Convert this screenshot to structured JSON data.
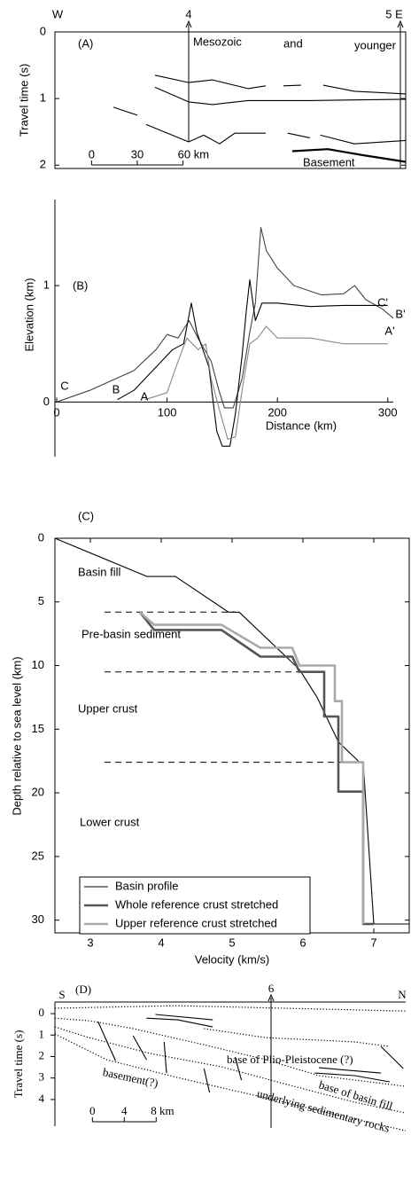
{
  "chart_data": [
    {
      "type": "line",
      "panel": "(A)",
      "ylabel": "Travel time (s)",
      "xlim": [
        -24,
        206
      ],
      "ylim": [
        2.05,
        0
      ],
      "yticks": [
        0,
        1,
        2
      ],
      "annotations": [
        "W",
        "4",
        "5 E",
        "Mesozoic",
        "and",
        "younger",
        "Basement"
      ],
      "scale_bar": [
        0,
        30,
        {
          "value": 60,
          "label": "60 km"
        }
      ],
      "series": [
        {
          "color": "#000",
          "style": "solid",
          "x": [
            41.6,
            63.7,
            79.4,
            102.6,
            114.2,
            null,
            125.8,
            137.4,
            null,
            151.9,
            172.3,
            189.7,
            206
          ],
          "values": [
            0.65,
            0.76,
            0.72,
            0.85,
            0.81,
            null,
            0.81,
            0.8,
            null,
            0.8,
            0.89,
            0.91,
            0.93
          ]
        },
        {
          "color": "#000",
          "style": "solid",
          "x": [
            41.6,
            63.7,
            79.4,
            102.6,
            143.2,
            206
          ],
          "values": [
            0.83,
            1.05,
            1.09,
            1.03,
            1.03,
            1.01
          ]
        },
        {
          "color": "#000",
          "style": "solid",
          "x": [
            14.3,
            30,
            null,
            35.8,
            63.7,
            73.6,
            84,
            93.9,
            114.2,
            null,
            128.7,
            143.2,
            null,
            150,
            172.3,
            206
          ],
          "values": [
            1.13,
            1.25,
            null,
            1.39,
            1.65,
            1.55,
            1.68,
            1.52,
            1.52,
            null,
            1.52,
            1.59,
            null,
            1.55,
            1.68,
            1.63
          ]
        },
        {
          "color": "#000",
          "style": "thick",
          "x": [
            131.6,
            155,
            178,
            206
          ],
          "values": [
            1.79,
            1.76,
            1.85,
            1.95
          ]
        }
      ]
    },
    {
      "type": "line",
      "panel": "(B)",
      "ylabel": "Elevation (km)",
      "xlabel": "Distance (km)",
      "xlim": [
        0,
        305
      ],
      "ylim": [
        -0.47,
        1.74
      ],
      "xticks": [
        0,
        100,
        200,
        300
      ],
      "yticks": [
        0,
        1
      ],
      "annotations": [
        "C",
        "B",
        "A",
        "C'",
        "B'",
        "A'"
      ],
      "series": [
        {
          "color": "#444",
          "style": "solid",
          "x": [
            0,
            30,
            70,
            90,
            100,
            110,
            120,
            128,
            140,
            147,
            152,
            160,
            168,
            175,
            180,
            185,
            190,
            200,
            215,
            240,
            260,
            270,
            280,
            295,
            305
          ],
          "values": [
            0,
            0.1,
            0.27,
            0.45,
            0.58,
            0.55,
            0.7,
            0.55,
            0.35,
            0.1,
            -0.05,
            -0.05,
            0.2,
            0.6,
            0.85,
            1.5,
            1.3,
            1.15,
            1.0,
            0.92,
            0.93,
            1.0,
            0.88,
            0.8,
            0.72
          ]
        },
        {
          "color": "#000",
          "style": "solid",
          "x": [
            55,
            70,
            90,
            105,
            115,
            122,
            127,
            138,
            145,
            150,
            157,
            162,
            168,
            172,
            175,
            180,
            186,
            200,
            230,
            260,
            300
          ],
          "values": [
            0.02,
            0.1,
            0.3,
            0.45,
            0.5,
            0.85,
            0.6,
            0.3,
            -0.25,
            -0.38,
            -0.38,
            -0.1,
            0.4,
            0.8,
            1.05,
            0.7,
            0.85,
            0.85,
            0.82,
            0.83,
            0.83
          ]
        },
        {
          "color": "#888",
          "style": "solid",
          "x": [
            80,
            90,
            100,
            110,
            118,
            128,
            135,
            140,
            147,
            155,
            162,
            168,
            175,
            182,
            190,
            200,
            230,
            260,
            300
          ],
          "values": [
            0.02,
            0.05,
            0.08,
            0.35,
            0.55,
            0.45,
            0.5,
            0.2,
            -0.05,
            -0.32,
            -0.3,
            0.1,
            0.5,
            0.55,
            0.65,
            0.55,
            0.55,
            0.5,
            0.5
          ]
        }
      ]
    },
    {
      "type": "line",
      "panel": "(C)",
      "ylabel": "Depth relative to sea level (km)",
      "xlabel": "Velocity (km/s)",
      "xlim": [
        2.5,
        7.5
      ],
      "ylim": [
        31,
        0
      ],
      "xticks": [
        3,
        4,
        5,
        6,
        7
      ],
      "yticks": [
        0,
        5,
        10,
        15,
        20,
        25,
        30
      ],
      "layers": [
        "Basin fill",
        "Pre-basin sediment",
        "Upper crust",
        "Lower crust"
      ],
      "boundaries": [
        5.8,
        10.5,
        17.6
      ],
      "legend": "lower left",
      "series": [
        {
          "name": "Basin profile",
          "color": "#000",
          "style": "solid",
          "x": [
            2.5,
            3.8,
            4.2,
            4.95,
            5.1,
            5.95,
            6.2,
            6.5,
            6.8,
            6.85,
            7.0,
            7.5
          ],
          "values": [
            0,
            3,
            3,
            5.8,
            5.8,
            10.3,
            12.5,
            16,
            17.6,
            17.6,
            30.3,
            30.3
          ]
        },
        {
          "name": "Whole reference crust stretched",
          "color": "#555",
          "style": "wide",
          "x": [
            3.7,
            3.9,
            4.85,
            5.4,
            5.85,
            5.95,
            6.3,
            6.3,
            6.5,
            6.5,
            6.85,
            6.85,
            7.0
          ],
          "values": [
            5.8,
            7.2,
            7.2,
            9.3,
            9.3,
            10.5,
            10.5,
            14,
            14,
            19.9,
            19.9,
            30.3,
            30.3
          ]
        },
        {
          "name": "Upper reference crust stretched",
          "color": "#aaa",
          "style": "wide",
          "x": [
            3.7,
            3.9,
            4.85,
            5.4,
            5.85,
            5.95,
            6.45,
            6.45,
            6.55,
            6.55,
            6.85,
            6.85
          ],
          "values": [
            5.8,
            6.8,
            6.8,
            8.6,
            8.6,
            10,
            10,
            12.8,
            12.8,
            17.6,
            17.6,
            30.3
          ]
        }
      ]
    },
    {
      "type": "line",
      "panel": "(D)",
      "ylabel": "Travel time (s)",
      "xlim": [
        -4.7,
        39.3
      ],
      "ylim": [
        6.07,
        -0.54
      ],
      "yticks": [
        0,
        1,
        2,
        3,
        4
      ],
      "annotations": [
        "S",
        "6",
        "N",
        "base of Plio-Pleistocene (?)",
        "base of basin fill",
        "basement(?)",
        "underlying sedimentary rocks"
      ],
      "scale_bar": [
        0,
        4,
        {
          "value": 8,
          "label": "8 km"
        }
      ],
      "series": [
        {
          "color": "#000",
          "style": "dotted",
          "x": [
            -4.7,
            10.7,
            24,
            39.3
          ],
          "values": [
            -0.25,
            -0.37,
            -0.25,
            -0.12
          ]
        },
        {
          "color": "#000",
          "style": "dotted",
          "x": [
            -4.7,
            -0.4,
            5.1,
            14,
            21.8,
            28.4,
            39.3
          ],
          "values": [
            0.21,
            0.33,
            0.7,
            1.45,
            2.15,
            2.89,
            3.39
          ]
        },
        {
          "color": "#000",
          "style": "dotted",
          "x": [
            -4.7,
            -0.4,
            7.3,
            16.2,
            24,
            32.9,
            39.3
          ],
          "values": [
            0.62,
            1.12,
            1.86,
            2.48,
            3.26,
            4.13,
            4.63
          ]
        },
        {
          "color": "#000",
          "style": "dotted",
          "x": [
            -4.7,
            1.8,
            10.7,
            21.8,
            32.9,
            39.3
          ],
          "values": [
            0.95,
            2.15,
            2.98,
            3.93,
            4.92,
            5.45
          ]
        },
        {
          "color": "#000",
          "style": "dotted",
          "x": [
            14,
            21.8,
            32.9,
            37.3
          ],
          "values": [
            0.7,
            1.12,
            1.32,
            1.53
          ]
        },
        {
          "color": "#000",
          "style": "solid",
          "x": [
            6.8,
            10.7,
            15.1
          ],
          "values": [
            0.21,
            0.29,
            0.62
          ]
        },
        {
          "color": "#000",
          "style": "solid",
          "x": [
            7.9,
            15.1
          ],
          "values": [
            0.04,
            0.29
          ]
        },
        {
          "color": "#000",
          "style": "solid",
          "x": [
            27.9,
            32.9,
            37.3
          ],
          "values": [
            2.77,
            2.89,
            3.18
          ]
        },
        {
          "color": "#000",
          "style": "solid",
          "x": [
            28.4,
            36.2
          ],
          "values": [
            2.52,
            2.77
          ]
        },
        {
          "color": "#000",
          "style": "solid",
          "x": [
            0.7,
            2.9
          ],
          "values": [
            0.37,
            2.19
          ]
        },
        {
          "color": "#000",
          "style": "solid",
          "x": [
            5.1,
            6.8
          ],
          "values": [
            1.03,
            2.15
          ]
        },
        {
          "color": "#000",
          "style": "solid",
          "x": [
            9,
            9.3
          ],
          "values": [
            1.32,
            2.77
          ]
        },
        {
          "color": "#000",
          "style": "solid",
          "x": [
            14,
            14.7
          ],
          "values": [
            2.56,
            3.68
          ]
        },
        {
          "color": "#000",
          "style": "solid",
          "x": [
            17.9,
            18.7
          ],
          "values": [
            2.02,
            3.1
          ]
        },
        {
          "color": "#000",
          "style": "solid",
          "x": [
            36.2,
            39
          ],
          "values": [
            1.53,
            2.56
          ]
        }
      ]
    }
  ]
}
